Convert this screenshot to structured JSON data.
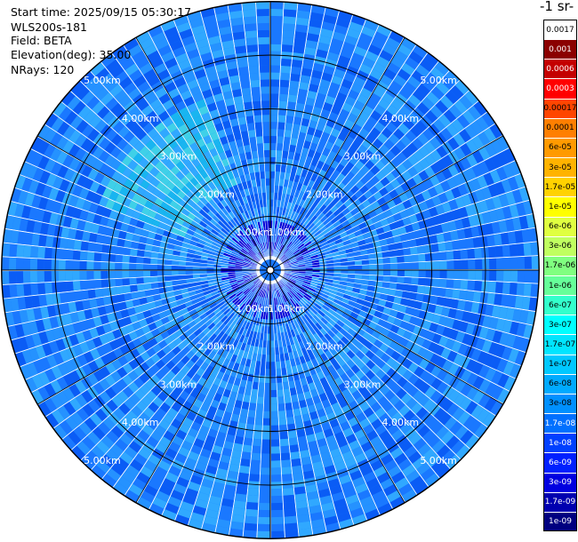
{
  "info": {
    "start_time": "Start time: 2025/09/15 05:30:17",
    "instrument": "WLS200s-181",
    "field": "Field: BETA",
    "elevation": "Elevation(deg): 35.00",
    "nrays": "NRays: 120"
  },
  "chart_data": {
    "type": "heatmap",
    "projection": "polar-ppi",
    "range_rings_km": [
      1,
      2,
      3,
      4,
      5
    ],
    "range_labels": [
      "1.00km",
      "2.00km",
      "3.00km",
      "4.00km",
      "5.00km"
    ],
    "max_range_km": 5.0,
    "n_rays": 120,
    "colorbar": {
      "title": "-1 sr-",
      "ticks": [
        "0.0017",
        "0.001",
        "0.0006",
        "0.0003",
        "0.00017",
        "0.0001",
        "6e-05",
        "3e-05",
        "1.7e-05",
        "1e-05",
        "6e-06",
        "3e-06",
        "1.7e-06",
        "1e-06",
        "6e-07",
        "3e-07",
        "1.7e-07",
        "1e-07",
        "6e-08",
        "3e-08",
        "1.7e-08",
        "1e-08",
        "6e-09",
        "3e-09",
        "1.7e-09",
        "1e-09"
      ],
      "colors": [
        "#ffffff",
        "#8b0000",
        "#c40000",
        "#ff0000",
        "#ff4500",
        "#ff7f00",
        "#ff9a00",
        "#ffb300",
        "#ffd200",
        "#ffff00",
        "#e0ff40",
        "#c0ff60",
        "#80ff80",
        "#66ff99",
        "#33ffcc",
        "#00ffff",
        "#00e5ff",
        "#00c8ff",
        "#00aaff",
        "#0090ff",
        "#0070ff",
        "#0040ff",
        "#0020ff",
        "#0000e0",
        "#0000b0",
        "#000080"
      ]
    }
  }
}
